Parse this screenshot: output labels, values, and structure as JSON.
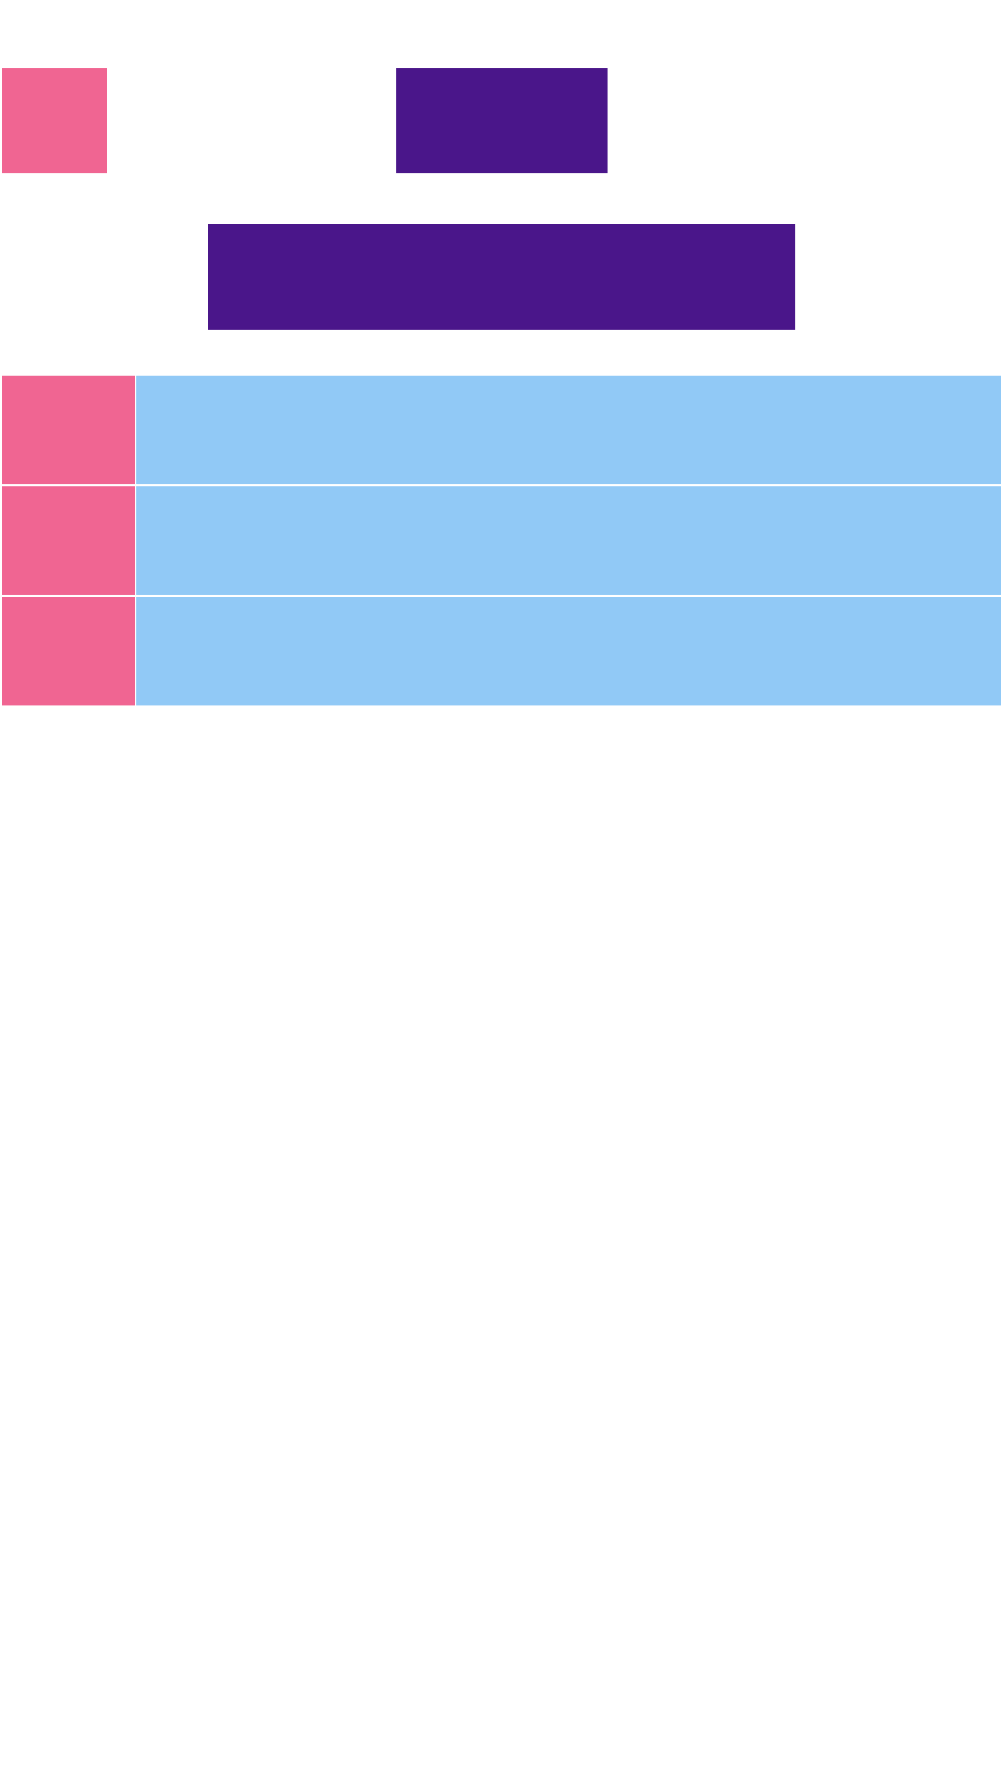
{
  "colors": {
    "background": "#ffffff",
    "pink": "#f06592",
    "purple": "#4a168a",
    "light_blue": "#91c9f6"
  },
  "header": {
    "left_tile_color": "pink",
    "center_tile_color": "purple"
  },
  "banner": {
    "color": "purple"
  },
  "list": {
    "rows": [
      {
        "thumb_color": "pink",
        "body_color": "light_blue"
      },
      {
        "thumb_color": "pink",
        "body_color": "light_blue"
      },
      {
        "thumb_color": "pink",
        "body_color": "light_blue"
      }
    ]
  }
}
